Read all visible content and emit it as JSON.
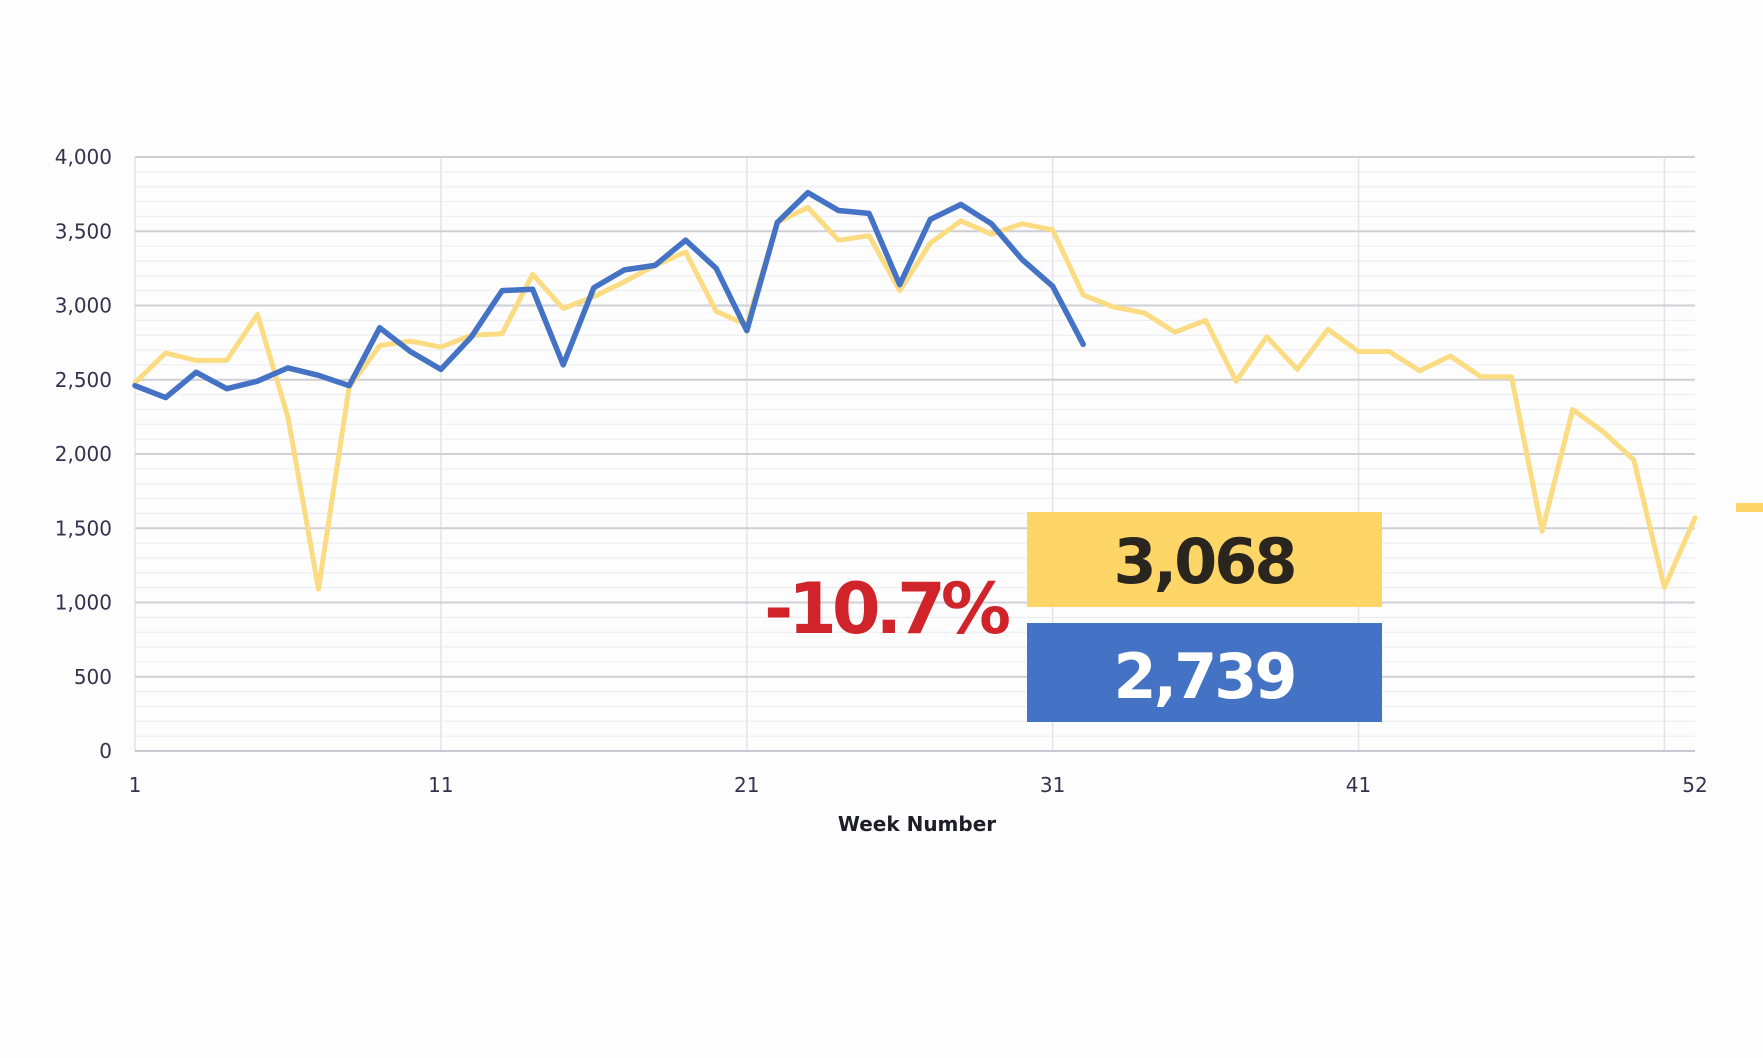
{
  "chart_data": {
    "type": "line",
    "xlabel": "Week Number",
    "ylabel": "",
    "xlim": [
      1,
      52
    ],
    "ylim": [
      0,
      4000
    ],
    "x_ticks": [
      1,
      11,
      21,
      31,
      41,
      52
    ],
    "y_ticks": [
      0,
      500,
      1000,
      1500,
      2000,
      2500,
      3000,
      3500,
      4000
    ],
    "y_tick_labels": [
      "0",
      "500",
      "1,000",
      "1,500",
      "2,000",
      "2,500",
      "3,000",
      "3,500",
      "4,000"
    ],
    "x_tick_labels": [
      "1",
      "11",
      "21",
      "31",
      "41",
      "52"
    ],
    "grid": true,
    "series": [
      {
        "color": "#fbdc82",
        "x": [
          1,
          2,
          3,
          4,
          5,
          6,
          7,
          8,
          9,
          10,
          11,
          12,
          13,
          14,
          15,
          16,
          17,
          18,
          19,
          20,
          21,
          22,
          23,
          24,
          25,
          26,
          27,
          28,
          29,
          30,
          31,
          32,
          33,
          34,
          35,
          36,
          37,
          38,
          39,
          40,
          41,
          42,
          43,
          44,
          45,
          46,
          47,
          48,
          49,
          50,
          51,
          52
        ],
        "values": [
          2480,
          2680,
          2630,
          2630,
          2940,
          2250,
          1090,
          2450,
          2730,
          2760,
          2720,
          2800,
          2810,
          3210,
          2980,
          3060,
          3160,
          3270,
          3360,
          2960,
          2870,
          3560,
          3660,
          3440,
          3470,
          3100,
          3420,
          3570,
          3480,
          3550,
          3510,
          3070,
          2990,
          2950,
          2820,
          2900,
          2490,
          2790,
          2570,
          2840,
          2690,
          2690,
          2560,
          2660,
          2520,
          2520,
          1480,
          2300,
          2150,
          1960,
          1100,
          1570
        ]
      },
      {
        "color": "#4472c4",
        "x": [
          1,
          2,
          3,
          4,
          5,
          6,
          7,
          8,
          9,
          10,
          11,
          12,
          13,
          14,
          15,
          16,
          17,
          18,
          19,
          20,
          21,
          22,
          23,
          24,
          25,
          26,
          27,
          28,
          29,
          30,
          31,
          32
        ],
        "values": [
          2460,
          2380,
          2550,
          2440,
          2490,
          2580,
          2530,
          2460,
          2850,
          2690,
          2570,
          2790,
          3100,
          3110,
          2600,
          3120,
          3240,
          3270,
          3440,
          3250,
          2830,
          3560,
          3760,
          3640,
          3620,
          3140,
          3580,
          3680,
          3550,
          3310,
          3130,
          2739
        ]
      }
    ]
  },
  "callout": {
    "last_year_value": "3,068",
    "this_year_value": "2,739",
    "change_pct": "-10.7%",
    "last_year_color": "#fdd667",
    "this_year_color": "#4472c4",
    "change_color": "#d0232a"
  }
}
